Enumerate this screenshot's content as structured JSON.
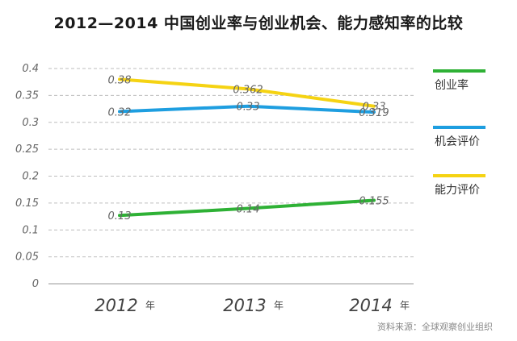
{
  "title": "2012—2014 中国创业率与创业机会、能力感知率的比较",
  "source": "资料来源：全球观察创业组织",
  "chart_data": {
    "type": "line",
    "categories": [
      "2012",
      "2013",
      "2014"
    ],
    "category_suffix": "年",
    "ylim": [
      0,
      0.4
    ],
    "yticks": [
      "0",
      "0.05",
      "0.1",
      "0.15",
      "0.2",
      "0.25",
      "0.3",
      "0.35",
      "0.4"
    ],
    "grid": true,
    "legend_position": "right",
    "series": [
      {
        "name": "创业率",
        "color": "#2eb135",
        "values": [
          0.127,
          0.14,
          0.155
        ],
        "labels": [
          "0.13",
          "0.14",
          "0.155"
        ]
      },
      {
        "name": "机会评价",
        "color": "#1e9ee0",
        "values": [
          0.32,
          0.33,
          0.319
        ],
        "labels": [
          "0.32",
          "0.33",
          "0.319"
        ]
      },
      {
        "name": "能力评价",
        "color": "#f5d313",
        "values": [
          0.38,
          0.362,
          0.33
        ],
        "labels": [
          "0.38",
          "0.362",
          "0.33"
        ]
      }
    ]
  }
}
